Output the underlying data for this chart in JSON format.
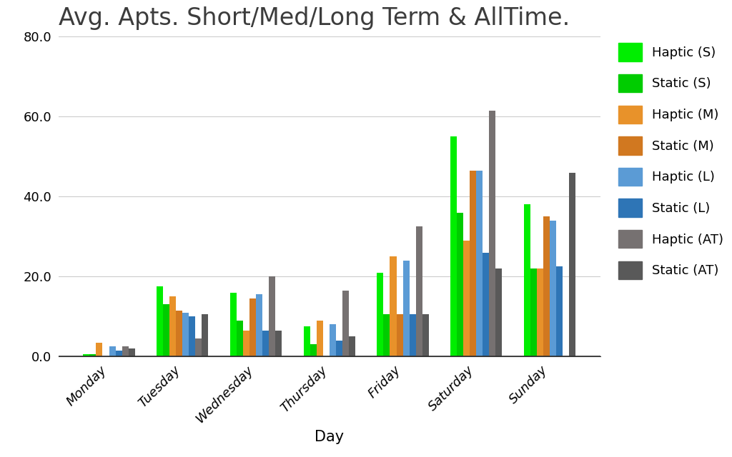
{
  "title": "Avg. Apts. Short/Med/Long Term & AllTime.",
  "xlabel": "Day",
  "ylabel": "",
  "days": [
    "Monday",
    "Tuesday",
    "Wednesday",
    "Thursday",
    "Friday",
    "Saturday",
    "Sunday"
  ],
  "series": [
    {
      "label": "Haptic (S)",
      "color": "#00ee00",
      "values": [
        0.5,
        17.5,
        16.0,
        7.5,
        21.0,
        55.0,
        38.0
      ]
    },
    {
      "label": "Static (S)",
      "color": "#00cc00",
      "values": [
        0.5,
        13.0,
        9.0,
        3.0,
        10.5,
        36.0,
        22.0
      ]
    },
    {
      "label": "Haptic (M)",
      "color": "#e8922a",
      "values": [
        3.5,
        15.0,
        6.5,
        9.0,
        25.0,
        29.0,
        22.0
      ]
    },
    {
      "label": "Static (M)",
      "color": "#d17820",
      "values": [
        0.0,
        11.5,
        14.5,
        0.0,
        10.5,
        46.5,
        35.0
      ]
    },
    {
      "label": "Haptic (L)",
      "color": "#5b9bd5",
      "values": [
        2.5,
        11.0,
        15.5,
        8.0,
        24.0,
        46.5,
        34.0
      ]
    },
    {
      "label": "Static (L)",
      "color": "#2e75b6",
      "values": [
        1.5,
        10.0,
        6.5,
        4.0,
        10.5,
        26.0,
        22.5
      ]
    },
    {
      "label": "Haptic (AT)",
      "color": "#767171",
      "values": [
        2.5,
        4.5,
        20.0,
        16.5,
        32.5,
        61.5,
        0.0
      ]
    },
    {
      "label": "Static (AT)",
      "color": "#595959",
      "values": [
        2.0,
        10.5,
        6.5,
        5.0,
        10.5,
        22.0,
        46.0
      ]
    }
  ],
  "ylim": [
    0,
    80
  ],
  "yticks": [
    0.0,
    20.0,
    40.0,
    60.0,
    80.0
  ],
  "background_color": "#ffffff",
  "title_fontsize": 24,
  "axis_label_fontsize": 15,
  "tick_fontsize": 13,
  "legend_fontsize": 13,
  "bar_width": 0.088,
  "figsize": [
    10.24,
    6.4
  ],
  "dpi": 100
}
